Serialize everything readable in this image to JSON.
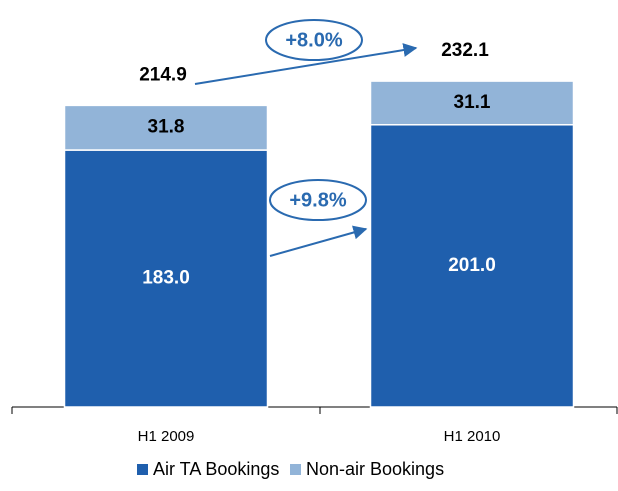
{
  "chart_data": {
    "type": "stacked-bar",
    "categories": [
      "H1 2009",
      "H1 2010"
    ],
    "series": [
      {
        "name": "Air TA Bookings",
        "color": "#1f5fad",
        "values": [
          183.0,
          201.0
        ],
        "value_labels": [
          "183.0",
          "201.0"
        ]
      },
      {
        "name": "Non-air Bookings",
        "color": "#92b4d8",
        "values": [
          31.8,
          31.1
        ],
        "value_labels": [
          "31.8",
          "31.1"
        ]
      }
    ],
    "totals": [
      214.9,
      232.1
    ],
    "annotations": [
      "+8.0%",
      "+9.8%"
    ],
    "ylim": [
      0,
      240
    ],
    "legend": "bottom"
  }
}
